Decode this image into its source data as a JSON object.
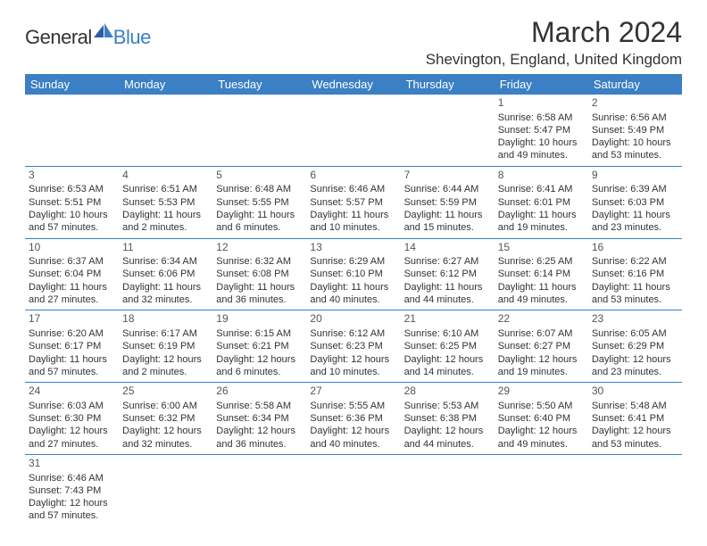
{
  "logo": {
    "text1": "General",
    "text2": "Blue"
  },
  "title": "March 2024",
  "location": "Shevington, England, United Kingdom",
  "colors": {
    "header_bg": "#3b7fc4",
    "header_fg": "#ffffff",
    "border": "#3b7fc4",
    "text": "#333333"
  },
  "weekdays": [
    "Sunday",
    "Monday",
    "Tuesday",
    "Wednesday",
    "Thursday",
    "Friday",
    "Saturday"
  ],
  "weeks": [
    [
      null,
      null,
      null,
      null,
      null,
      {
        "n": "1",
        "sr": "Sunrise: 6:58 AM",
        "ss": "Sunset: 5:47 PM",
        "d1": "Daylight: 10 hours",
        "d2": "and 49 minutes."
      },
      {
        "n": "2",
        "sr": "Sunrise: 6:56 AM",
        "ss": "Sunset: 5:49 PM",
        "d1": "Daylight: 10 hours",
        "d2": "and 53 minutes."
      }
    ],
    [
      {
        "n": "3",
        "sr": "Sunrise: 6:53 AM",
        "ss": "Sunset: 5:51 PM",
        "d1": "Daylight: 10 hours",
        "d2": "and 57 minutes."
      },
      {
        "n": "4",
        "sr": "Sunrise: 6:51 AM",
        "ss": "Sunset: 5:53 PM",
        "d1": "Daylight: 11 hours",
        "d2": "and 2 minutes."
      },
      {
        "n": "5",
        "sr": "Sunrise: 6:48 AM",
        "ss": "Sunset: 5:55 PM",
        "d1": "Daylight: 11 hours",
        "d2": "and 6 minutes."
      },
      {
        "n": "6",
        "sr": "Sunrise: 6:46 AM",
        "ss": "Sunset: 5:57 PM",
        "d1": "Daylight: 11 hours",
        "d2": "and 10 minutes."
      },
      {
        "n": "7",
        "sr": "Sunrise: 6:44 AM",
        "ss": "Sunset: 5:59 PM",
        "d1": "Daylight: 11 hours",
        "d2": "and 15 minutes."
      },
      {
        "n": "8",
        "sr": "Sunrise: 6:41 AM",
        "ss": "Sunset: 6:01 PM",
        "d1": "Daylight: 11 hours",
        "d2": "and 19 minutes."
      },
      {
        "n": "9",
        "sr": "Sunrise: 6:39 AM",
        "ss": "Sunset: 6:03 PM",
        "d1": "Daylight: 11 hours",
        "d2": "and 23 minutes."
      }
    ],
    [
      {
        "n": "10",
        "sr": "Sunrise: 6:37 AM",
        "ss": "Sunset: 6:04 PM",
        "d1": "Daylight: 11 hours",
        "d2": "and 27 minutes."
      },
      {
        "n": "11",
        "sr": "Sunrise: 6:34 AM",
        "ss": "Sunset: 6:06 PM",
        "d1": "Daylight: 11 hours",
        "d2": "and 32 minutes."
      },
      {
        "n": "12",
        "sr": "Sunrise: 6:32 AM",
        "ss": "Sunset: 6:08 PM",
        "d1": "Daylight: 11 hours",
        "d2": "and 36 minutes."
      },
      {
        "n": "13",
        "sr": "Sunrise: 6:29 AM",
        "ss": "Sunset: 6:10 PM",
        "d1": "Daylight: 11 hours",
        "d2": "and 40 minutes."
      },
      {
        "n": "14",
        "sr": "Sunrise: 6:27 AM",
        "ss": "Sunset: 6:12 PM",
        "d1": "Daylight: 11 hours",
        "d2": "and 44 minutes."
      },
      {
        "n": "15",
        "sr": "Sunrise: 6:25 AM",
        "ss": "Sunset: 6:14 PM",
        "d1": "Daylight: 11 hours",
        "d2": "and 49 minutes."
      },
      {
        "n": "16",
        "sr": "Sunrise: 6:22 AM",
        "ss": "Sunset: 6:16 PM",
        "d1": "Daylight: 11 hours",
        "d2": "and 53 minutes."
      }
    ],
    [
      {
        "n": "17",
        "sr": "Sunrise: 6:20 AM",
        "ss": "Sunset: 6:17 PM",
        "d1": "Daylight: 11 hours",
        "d2": "and 57 minutes."
      },
      {
        "n": "18",
        "sr": "Sunrise: 6:17 AM",
        "ss": "Sunset: 6:19 PM",
        "d1": "Daylight: 12 hours",
        "d2": "and 2 minutes."
      },
      {
        "n": "19",
        "sr": "Sunrise: 6:15 AM",
        "ss": "Sunset: 6:21 PM",
        "d1": "Daylight: 12 hours",
        "d2": "and 6 minutes."
      },
      {
        "n": "20",
        "sr": "Sunrise: 6:12 AM",
        "ss": "Sunset: 6:23 PM",
        "d1": "Daylight: 12 hours",
        "d2": "and 10 minutes."
      },
      {
        "n": "21",
        "sr": "Sunrise: 6:10 AM",
        "ss": "Sunset: 6:25 PM",
        "d1": "Daylight: 12 hours",
        "d2": "and 14 minutes."
      },
      {
        "n": "22",
        "sr": "Sunrise: 6:07 AM",
        "ss": "Sunset: 6:27 PM",
        "d1": "Daylight: 12 hours",
        "d2": "and 19 minutes."
      },
      {
        "n": "23",
        "sr": "Sunrise: 6:05 AM",
        "ss": "Sunset: 6:29 PM",
        "d1": "Daylight: 12 hours",
        "d2": "and 23 minutes."
      }
    ],
    [
      {
        "n": "24",
        "sr": "Sunrise: 6:03 AM",
        "ss": "Sunset: 6:30 PM",
        "d1": "Daylight: 12 hours",
        "d2": "and 27 minutes."
      },
      {
        "n": "25",
        "sr": "Sunrise: 6:00 AM",
        "ss": "Sunset: 6:32 PM",
        "d1": "Daylight: 12 hours",
        "d2": "and 32 minutes."
      },
      {
        "n": "26",
        "sr": "Sunrise: 5:58 AM",
        "ss": "Sunset: 6:34 PM",
        "d1": "Daylight: 12 hours",
        "d2": "and 36 minutes."
      },
      {
        "n": "27",
        "sr": "Sunrise: 5:55 AM",
        "ss": "Sunset: 6:36 PM",
        "d1": "Daylight: 12 hours",
        "d2": "and 40 minutes."
      },
      {
        "n": "28",
        "sr": "Sunrise: 5:53 AM",
        "ss": "Sunset: 6:38 PM",
        "d1": "Daylight: 12 hours",
        "d2": "and 44 minutes."
      },
      {
        "n": "29",
        "sr": "Sunrise: 5:50 AM",
        "ss": "Sunset: 6:40 PM",
        "d1": "Daylight: 12 hours",
        "d2": "and 49 minutes."
      },
      {
        "n": "30",
        "sr": "Sunrise: 5:48 AM",
        "ss": "Sunset: 6:41 PM",
        "d1": "Daylight: 12 hours",
        "d2": "and 53 minutes."
      }
    ],
    [
      {
        "n": "31",
        "sr": "Sunrise: 6:46 AM",
        "ss": "Sunset: 7:43 PM",
        "d1": "Daylight: 12 hours",
        "d2": "and 57 minutes."
      },
      null,
      null,
      null,
      null,
      null,
      null
    ]
  ]
}
